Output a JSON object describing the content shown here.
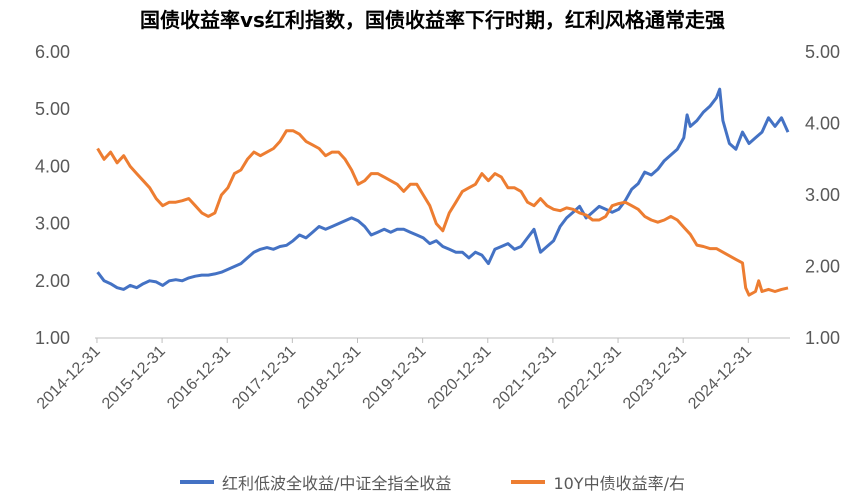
{
  "chart_data": {
    "type": "line",
    "title": "国债收益率vs红利指数，国债收益率下行时期，红利风格通常走强",
    "left_axis": {
      "min": 1,
      "max": 6,
      "ticks": [
        "1.00",
        "2.00",
        "3.00",
        "4.00",
        "5.00",
        "6.00"
      ]
    },
    "right_axis": {
      "min": 1,
      "max": 5,
      "ticks": [
        "1.00",
        "2.00",
        "3.00",
        "4.00",
        "5.00"
      ]
    },
    "x_start": 2014.96,
    "x_end": 2025.63,
    "x_ticks": [
      {
        "label": "2014-12-31",
        "t": 2014.99
      },
      {
        "label": "2015-12-31",
        "t": 2015.99
      },
      {
        "label": "2016-12-31",
        "t": 2016.99
      },
      {
        "label": "2017-12-31",
        "t": 2017.99
      },
      {
        "label": "2018-12-31",
        "t": 2018.99
      },
      {
        "label": "2019-12-31",
        "t": 2019.99
      },
      {
        "label": "2020-12-31",
        "t": 2020.99
      },
      {
        "label": "2021-12-31",
        "t": 2021.99
      },
      {
        "label": "2022-12-31",
        "t": 2022.99
      },
      {
        "label": "2023-12-31",
        "t": 2023.99
      },
      {
        "label": "2024-12-31",
        "t": 2024.99
      }
    ],
    "series": [
      {
        "name": "红利低波全收益/中证全指全收益",
        "axis": "left",
        "color": "#4472C4",
        "points": [
          [
            2015.0,
            2.15
          ],
          [
            2015.1,
            2.0
          ],
          [
            2015.2,
            1.95
          ],
          [
            2015.3,
            1.88
          ],
          [
            2015.4,
            1.85
          ],
          [
            2015.5,
            1.92
          ],
          [
            2015.6,
            1.88
          ],
          [
            2015.7,
            1.95
          ],
          [
            2015.8,
            2.0
          ],
          [
            2015.9,
            1.98
          ],
          [
            2016.0,
            1.92
          ],
          [
            2016.1,
            2.0
          ],
          [
            2016.2,
            2.02
          ],
          [
            2016.3,
            2.0
          ],
          [
            2016.4,
            2.05
          ],
          [
            2016.5,
            2.08
          ],
          [
            2016.6,
            2.1
          ],
          [
            2016.7,
            2.1
          ],
          [
            2016.8,
            2.12
          ],
          [
            2016.9,
            2.15
          ],
          [
            2017.0,
            2.2
          ],
          [
            2017.1,
            2.25
          ],
          [
            2017.2,
            2.3
          ],
          [
            2017.3,
            2.4
          ],
          [
            2017.4,
            2.5
          ],
          [
            2017.5,
            2.55
          ],
          [
            2017.6,
            2.58
          ],
          [
            2017.7,
            2.55
          ],
          [
            2017.8,
            2.6
          ],
          [
            2017.9,
            2.62
          ],
          [
            2018.0,
            2.7
          ],
          [
            2018.1,
            2.8
          ],
          [
            2018.2,
            2.75
          ],
          [
            2018.3,
            2.85
          ],
          [
            2018.4,
            2.95
          ],
          [
            2018.5,
            2.9
          ],
          [
            2018.6,
            2.95
          ],
          [
            2018.7,
            3.0
          ],
          [
            2018.8,
            3.05
          ],
          [
            2018.9,
            3.1
          ],
          [
            2019.0,
            3.05
          ],
          [
            2019.1,
            2.95
          ],
          [
            2019.2,
            2.8
          ],
          [
            2019.3,
            2.85
          ],
          [
            2019.4,
            2.9
          ],
          [
            2019.5,
            2.85
          ],
          [
            2019.6,
            2.9
          ],
          [
            2019.7,
            2.9
          ],
          [
            2019.8,
            2.85
          ],
          [
            2019.9,
            2.8
          ],
          [
            2020.0,
            2.75
          ],
          [
            2020.1,
            2.65
          ],
          [
            2020.2,
            2.7
          ],
          [
            2020.3,
            2.6
          ],
          [
            2020.4,
            2.55
          ],
          [
            2020.5,
            2.5
          ],
          [
            2020.6,
            2.5
          ],
          [
            2020.7,
            2.4
          ],
          [
            2020.8,
            2.5
          ],
          [
            2020.9,
            2.45
          ],
          [
            2021.0,
            2.3
          ],
          [
            2021.1,
            2.55
          ],
          [
            2021.2,
            2.6
          ],
          [
            2021.3,
            2.65
          ],
          [
            2021.4,
            2.55
          ],
          [
            2021.5,
            2.6
          ],
          [
            2021.6,
            2.75
          ],
          [
            2021.7,
            2.9
          ],
          [
            2021.8,
            2.5
          ],
          [
            2021.9,
            2.6
          ],
          [
            2022.0,
            2.7
          ],
          [
            2022.1,
            2.95
          ],
          [
            2022.2,
            3.1
          ],
          [
            2022.3,
            3.2
          ],
          [
            2022.4,
            3.3
          ],
          [
            2022.5,
            3.1
          ],
          [
            2022.6,
            3.2
          ],
          [
            2022.7,
            3.3
          ],
          [
            2022.8,
            3.25
          ],
          [
            2022.9,
            3.2
          ],
          [
            2023.0,
            3.25
          ],
          [
            2023.1,
            3.4
          ],
          [
            2023.2,
            3.6
          ],
          [
            2023.3,
            3.7
          ],
          [
            2023.4,
            3.9
          ],
          [
            2023.5,
            3.85
          ],
          [
            2023.6,
            3.95
          ],
          [
            2023.7,
            4.1
          ],
          [
            2023.8,
            4.2
          ],
          [
            2023.9,
            4.3
          ],
          [
            2024.0,
            4.5
          ],
          [
            2024.05,
            4.9
          ],
          [
            2024.1,
            4.7
          ],
          [
            2024.2,
            4.8
          ],
          [
            2024.3,
            4.95
          ],
          [
            2024.4,
            5.05
          ],
          [
            2024.5,
            5.2
          ],
          [
            2024.55,
            5.35
          ],
          [
            2024.6,
            4.8
          ],
          [
            2024.7,
            4.4
          ],
          [
            2024.8,
            4.3
          ],
          [
            2024.9,
            4.6
          ],
          [
            2025.0,
            4.4
          ],
          [
            2025.1,
            4.5
          ],
          [
            2025.2,
            4.6
          ],
          [
            2025.3,
            4.85
          ],
          [
            2025.4,
            4.7
          ],
          [
            2025.5,
            4.85
          ],
          [
            2025.6,
            4.6
          ]
        ]
      },
      {
        "name": "10Y中债收益率/右",
        "axis": "right",
        "color": "#ED7D31",
        "points": [
          [
            2015.0,
            3.65
          ],
          [
            2015.1,
            3.5
          ],
          [
            2015.2,
            3.6
          ],
          [
            2015.3,
            3.45
          ],
          [
            2015.4,
            3.55
          ],
          [
            2015.5,
            3.4
          ],
          [
            2015.6,
            3.3
          ],
          [
            2015.7,
            3.2
          ],
          [
            2015.8,
            3.1
          ],
          [
            2015.9,
            2.95
          ],
          [
            2016.0,
            2.85
          ],
          [
            2016.1,
            2.9
          ],
          [
            2016.2,
            2.9
          ],
          [
            2016.3,
            2.92
          ],
          [
            2016.4,
            2.95
          ],
          [
            2016.5,
            2.85
          ],
          [
            2016.6,
            2.75
          ],
          [
            2016.7,
            2.7
          ],
          [
            2016.8,
            2.75
          ],
          [
            2016.9,
            3.0
          ],
          [
            2017.0,
            3.1
          ],
          [
            2017.1,
            3.3
          ],
          [
            2017.2,
            3.35
          ],
          [
            2017.3,
            3.5
          ],
          [
            2017.4,
            3.6
          ],
          [
            2017.5,
            3.55
          ],
          [
            2017.6,
            3.6
          ],
          [
            2017.7,
            3.65
          ],
          [
            2017.8,
            3.75
          ],
          [
            2017.9,
            3.9
          ],
          [
            2018.0,
            3.9
          ],
          [
            2018.1,
            3.85
          ],
          [
            2018.2,
            3.75
          ],
          [
            2018.3,
            3.7
          ],
          [
            2018.4,
            3.65
          ],
          [
            2018.5,
            3.55
          ],
          [
            2018.6,
            3.6
          ],
          [
            2018.7,
            3.6
          ],
          [
            2018.8,
            3.5
          ],
          [
            2018.9,
            3.35
          ],
          [
            2019.0,
            3.15
          ],
          [
            2019.1,
            3.2
          ],
          [
            2019.2,
            3.3
          ],
          [
            2019.3,
            3.3
          ],
          [
            2019.4,
            3.25
          ],
          [
            2019.5,
            3.2
          ],
          [
            2019.6,
            3.15
          ],
          [
            2019.7,
            3.05
          ],
          [
            2019.8,
            3.15
          ],
          [
            2019.9,
            3.15
          ],
          [
            2020.0,
            3.0
          ],
          [
            2020.1,
            2.85
          ],
          [
            2020.2,
            2.6
          ],
          [
            2020.3,
            2.5
          ],
          [
            2020.4,
            2.75
          ],
          [
            2020.5,
            2.9
          ],
          [
            2020.6,
            3.05
          ],
          [
            2020.7,
            3.1
          ],
          [
            2020.8,
            3.15
          ],
          [
            2020.9,
            3.3
          ],
          [
            2021.0,
            3.2
          ],
          [
            2021.1,
            3.3
          ],
          [
            2021.2,
            3.25
          ],
          [
            2021.3,
            3.1
          ],
          [
            2021.4,
            3.1
          ],
          [
            2021.5,
            3.05
          ],
          [
            2021.6,
            2.9
          ],
          [
            2021.7,
            2.85
          ],
          [
            2021.8,
            2.95
          ],
          [
            2021.9,
            2.85
          ],
          [
            2022.0,
            2.8
          ],
          [
            2022.1,
            2.78
          ],
          [
            2022.2,
            2.82
          ],
          [
            2022.3,
            2.8
          ],
          [
            2022.4,
            2.75
          ],
          [
            2022.5,
            2.72
          ],
          [
            2022.6,
            2.65
          ],
          [
            2022.7,
            2.65
          ],
          [
            2022.8,
            2.7
          ],
          [
            2022.9,
            2.85
          ],
          [
            2023.0,
            2.88
          ],
          [
            2023.1,
            2.9
          ],
          [
            2023.2,
            2.85
          ],
          [
            2023.3,
            2.8
          ],
          [
            2023.4,
            2.7
          ],
          [
            2023.5,
            2.65
          ],
          [
            2023.6,
            2.62
          ],
          [
            2023.7,
            2.65
          ],
          [
            2023.8,
            2.7
          ],
          [
            2023.9,
            2.65
          ],
          [
            2024.0,
            2.55
          ],
          [
            2024.1,
            2.45
          ],
          [
            2024.2,
            2.3
          ],
          [
            2024.3,
            2.28
          ],
          [
            2024.4,
            2.25
          ],
          [
            2024.5,
            2.25
          ],
          [
            2024.6,
            2.2
          ],
          [
            2024.7,
            2.15
          ],
          [
            2024.8,
            2.1
          ],
          [
            2024.9,
            2.05
          ],
          [
            2024.95,
            1.7
          ],
          [
            2025.0,
            1.6
          ],
          [
            2025.1,
            1.65
          ],
          [
            2025.15,
            1.8
          ],
          [
            2025.2,
            1.65
          ],
          [
            2025.3,
            1.68
          ],
          [
            2025.4,
            1.65
          ],
          [
            2025.5,
            1.68
          ],
          [
            2025.6,
            1.7
          ]
        ]
      }
    ]
  }
}
